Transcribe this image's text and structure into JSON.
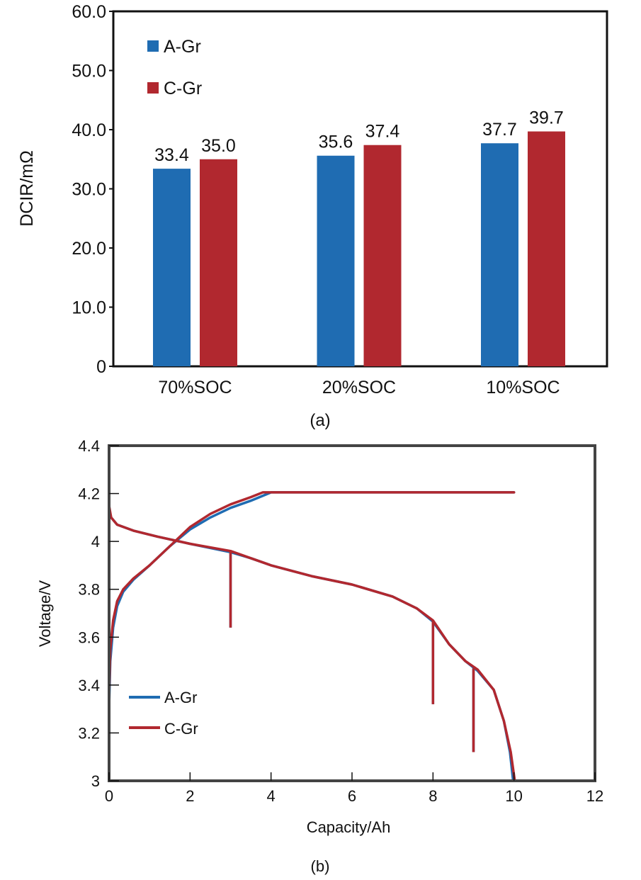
{
  "colors": {
    "A-Gr": "#1f6cb2",
    "C-Gr": "#b1282f",
    "axis": "#111111",
    "frame_b": "#444444"
  },
  "chart_data": [
    {
      "type": "bar",
      "panel_label": "(a)",
      "title": "",
      "xlabel": "",
      "ylabel": "DCIR/mΩ",
      "ylim": [
        0,
        60
      ],
      "yticks": [
        0,
        10,
        20,
        30,
        40,
        50,
        60
      ],
      "ytick_labels": [
        "0",
        "10.0",
        "20.0",
        "30.0",
        "40.0",
        "50.0",
        "60.0"
      ],
      "categories": [
        "70%SOC",
        "20%SOC",
        "10%SOC"
      ],
      "series": [
        {
          "name": "A-Gr",
          "values": [
            33.4,
            35.6,
            37.7
          ],
          "labels": [
            "33.4",
            "35.6",
            "37.7"
          ]
        },
        {
          "name": "C-Gr",
          "values": [
            35.0,
            37.4,
            39.7
          ],
          "labels": [
            "35.0",
            "37.4",
            "39.7"
          ]
        }
      ],
      "legend": {
        "position": "top-left",
        "entries": [
          "A-Gr",
          "C-Gr"
        ]
      },
      "grid": false
    },
    {
      "type": "line",
      "panel_label": "(b)",
      "title": "",
      "xlabel": "Capacity/Ah",
      "ylabel": "Voltage/V",
      "xlim": [
        0,
        12
      ],
      "ylim": [
        3,
        4.4
      ],
      "xticks": [
        0,
        2,
        4,
        6,
        8,
        10,
        12
      ],
      "xtick_labels": [
        "0",
        "2",
        "4",
        "6",
        "8",
        "10",
        "12"
      ],
      "yticks": [
        3,
        3.2,
        3.4,
        3.6,
        3.8,
        4,
        4.2,
        4.4
      ],
      "ytick_labels": [
        "3",
        "3.2",
        "3.4",
        "3.6",
        "3.8",
        "4",
        "4.2",
        "4.4"
      ],
      "legend": {
        "position": "bottom-left",
        "entries": [
          "A-Gr",
          "C-Gr"
        ]
      },
      "grid": false,
      "series": [
        {
          "name": "A-Gr",
          "charge": {
            "x": [
              0,
              0.03,
              0.1,
              0.2,
              0.35,
              0.6,
              1.0,
              1.5,
              2.0,
              2.5,
              3.0,
              3.5,
              4.0,
              10.0
            ],
            "y": [
              3.31,
              3.5,
              3.64,
              3.73,
              3.79,
              3.84,
              3.9,
              3.98,
              4.05,
              4.1,
              4.14,
              4.17,
              4.205,
              4.205
            ]
          },
          "discharge": {
            "x": [
              0,
              0.05,
              0.2,
              0.6,
              1.2,
              2.0,
              3.0,
              3.5,
              4.0,
              5.0,
              6.0,
              7.0,
              7.6,
              8.0,
              8.4,
              8.8,
              9.1,
              9.5,
              9.75,
              9.9,
              9.98
            ],
            "y": [
              4.14,
              4.1,
              4.07,
              4.045,
              4.02,
              3.99,
              3.955,
              3.93,
              3.9,
              3.855,
              3.82,
              3.77,
              3.72,
              3.665,
              3.57,
              3.5,
              3.46,
              3.38,
              3.25,
              3.12,
              3.0
            ]
          },
          "pulses": [
            {
              "x": 3,
              "from": 3.955,
              "to": 3.64
            },
            {
              "x": 8,
              "from": 3.665,
              "to": 3.32
            },
            {
              "x": 9,
              "from": 3.47,
              "to": 3.12
            }
          ]
        },
        {
          "name": "C-Gr",
          "charge": {
            "x": [
              0,
              0.03,
              0.1,
              0.2,
              0.35,
              0.6,
              1.0,
              1.5,
              2.0,
              2.5,
              3.0,
              3.5,
              3.8,
              10.0
            ],
            "y": [
              3.35,
              3.55,
              3.67,
              3.75,
              3.8,
              3.845,
              3.9,
              3.98,
              4.06,
              4.115,
              4.155,
              4.185,
              4.205,
              4.205
            ]
          },
          "discharge": {
            "x": [
              0,
              0.05,
              0.2,
              0.6,
              1.2,
              2.0,
              3.0,
              3.5,
              4.0,
              5.0,
              6.0,
              7.0,
              7.6,
              8.0,
              8.4,
              8.8,
              9.1,
              9.5,
              9.75,
              9.92,
              10.02
            ],
            "y": [
              4.15,
              4.1,
              4.07,
              4.045,
              4.02,
              3.99,
              3.96,
              3.93,
              3.9,
              3.855,
              3.82,
              3.77,
              3.72,
              3.67,
              3.57,
              3.5,
              3.465,
              3.38,
              3.25,
              3.12,
              3.0
            ]
          },
          "pulses": [
            {
              "x": 3,
              "from": 3.96,
              "to": 3.64
            },
            {
              "x": 8,
              "from": 3.67,
              "to": 3.32
            },
            {
              "x": 9,
              "from": 3.47,
              "to": 3.12
            }
          ]
        }
      ]
    }
  ]
}
